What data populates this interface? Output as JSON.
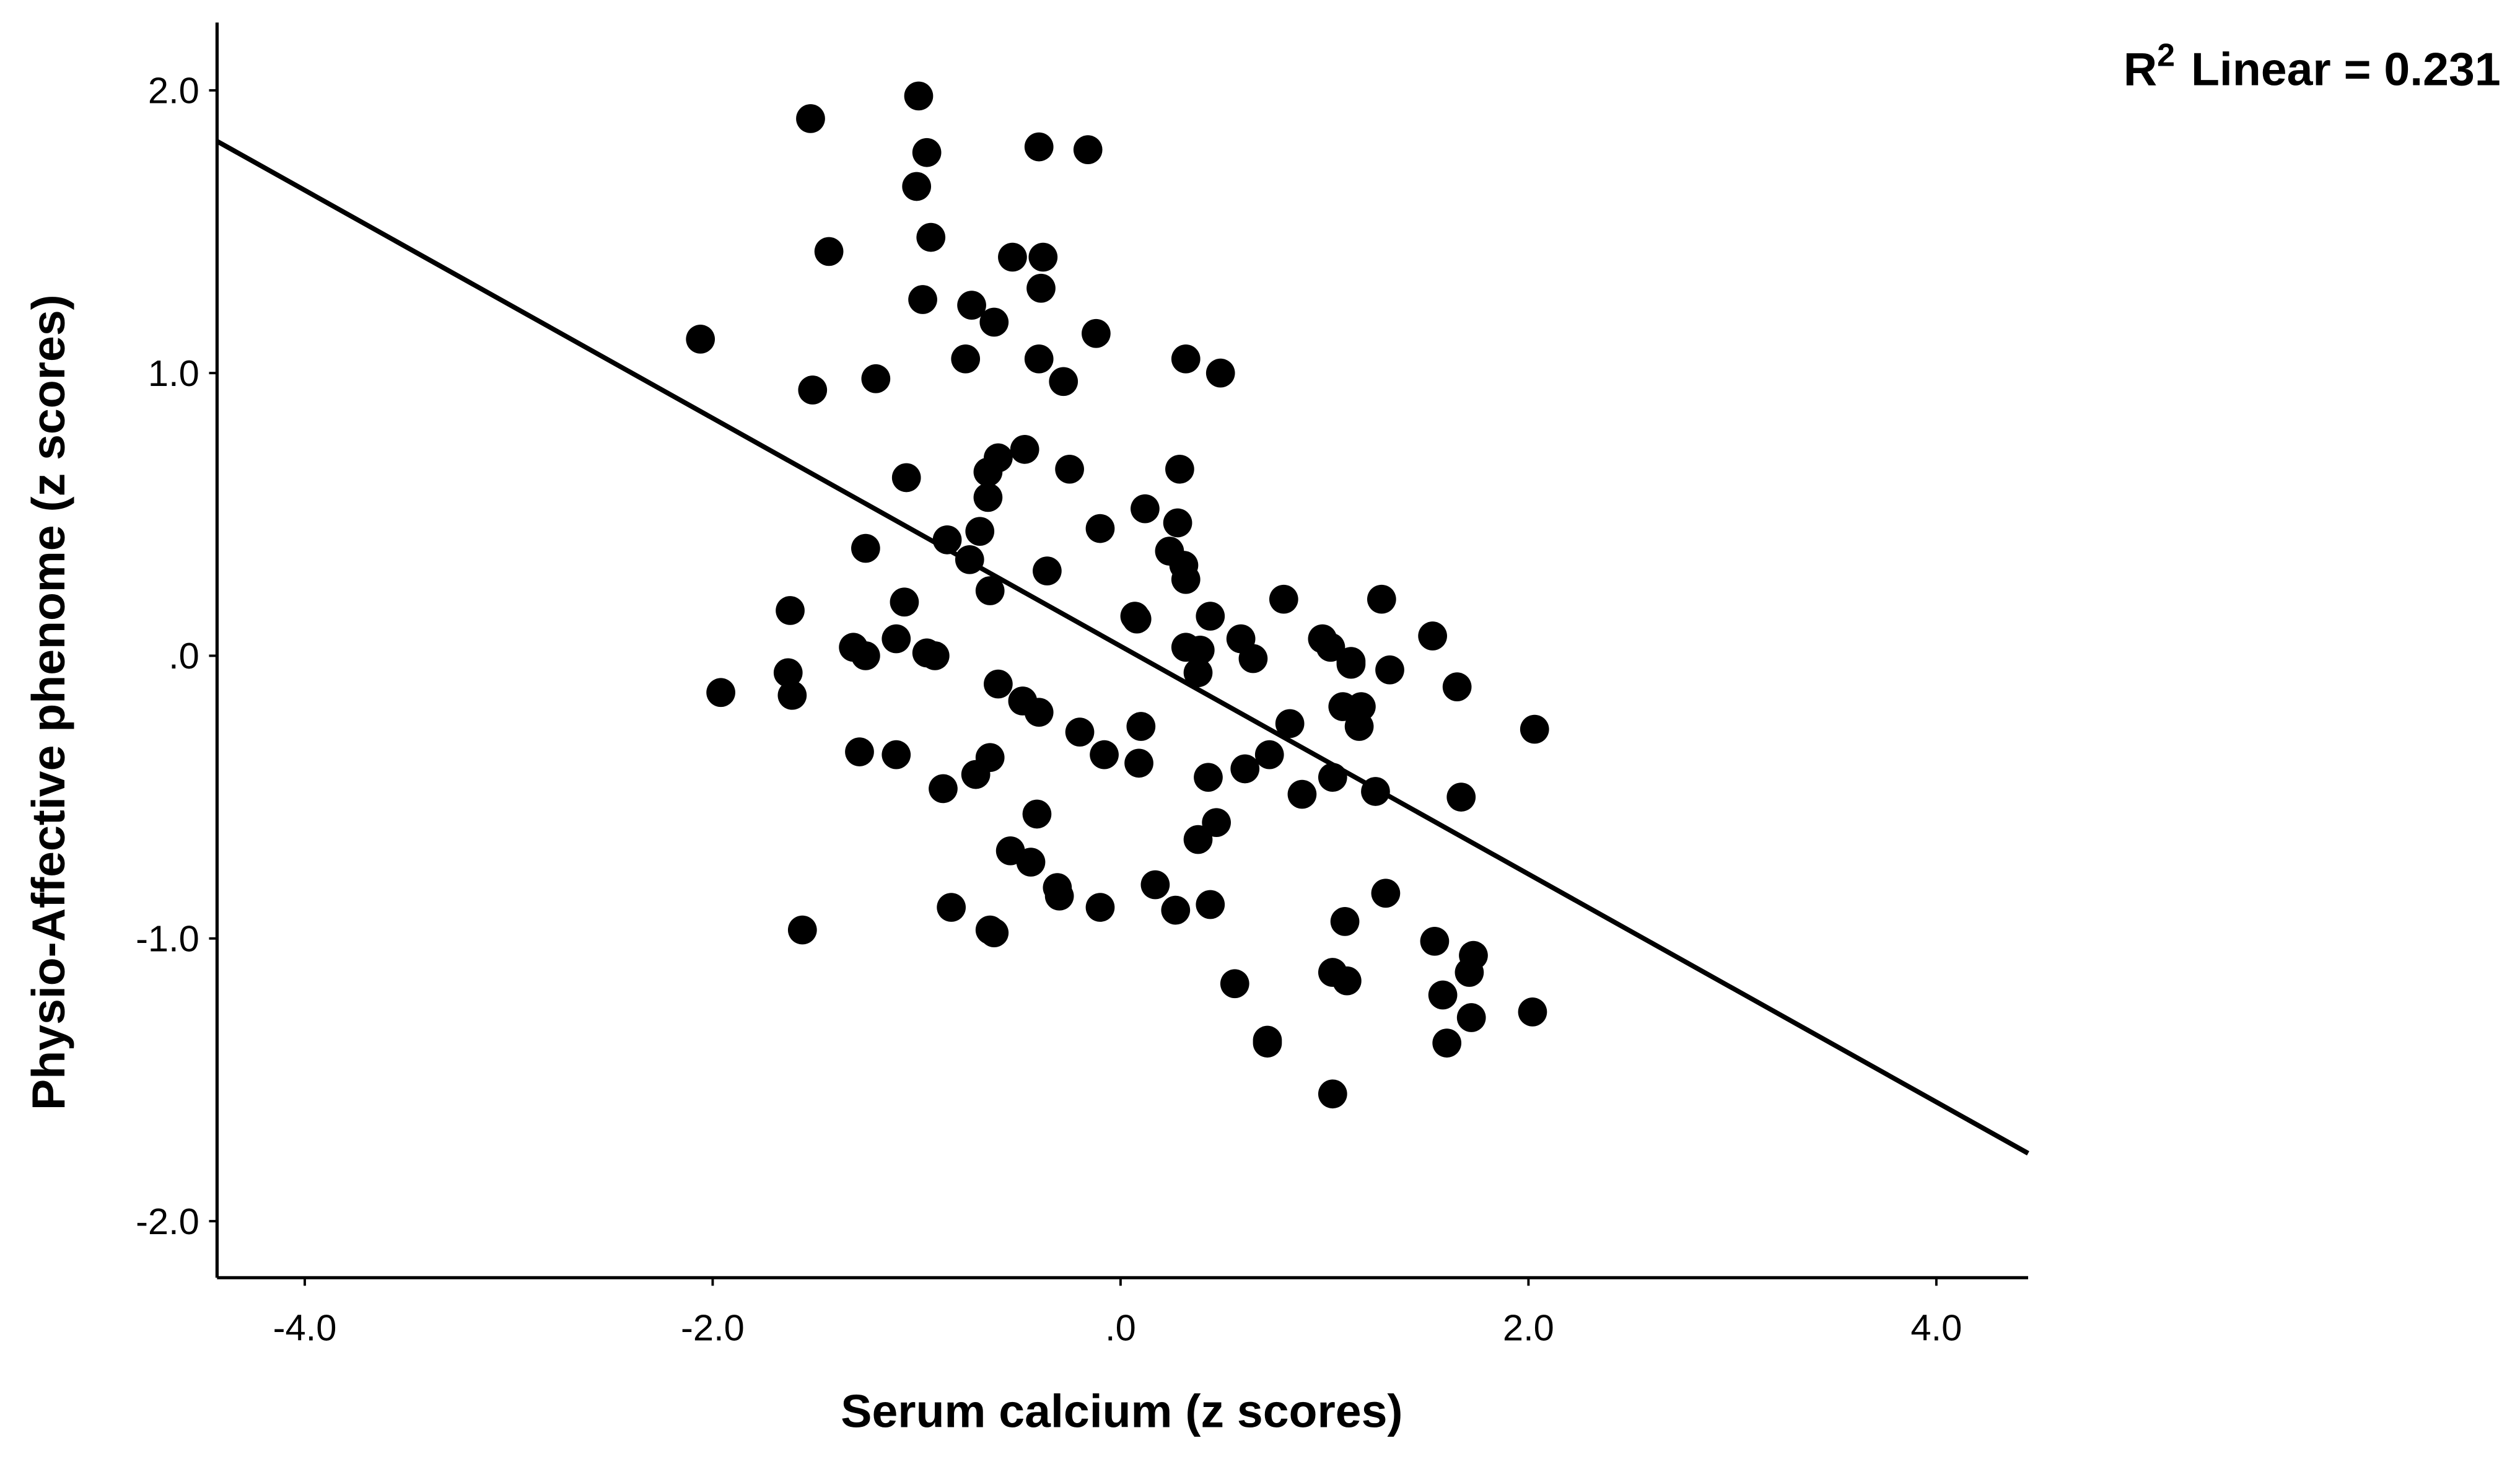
{
  "chart_data": {
    "type": "scatter",
    "x_label": "Serum calcium (z scores)",
    "y_label": "Physio-Affective phenome (z scores)",
    "annotation": {
      "base": "R",
      "exponent": "2",
      "text": "Linear = 0.231"
    },
    "color": "#000000",
    "x": [
      -1.52,
      -0.99,
      -0.95,
      -1.0,
      -0.4,
      -0.16,
      -1.43,
      -0.93,
      -0.53,
      -0.38,
      -0.97,
      -0.73,
      -0.62,
      -0.39,
      -0.12,
      -2.06,
      -1.51,
      -1.2,
      -0.76,
      -0.4,
      -0.28,
      0.32,
      0.49,
      -1.05,
      -0.6,
      -0.47,
      -0.65,
      -0.65,
      -0.25,
      0.29,
      -0.69,
      -0.85,
      0.12,
      -0.1,
      0.28,
      -1.25,
      -0.74,
      0.24,
      0.31,
      -0.36,
      0.32,
      -0.64,
      -1.06,
      -1.62,
      0.07,
      0.08,
      0.44,
      0.8,
      1.28,
      1.53,
      -1.1,
      -1.31,
      -1.25,
      -0.95,
      -0.91,
      0.32,
      0.39,
      0.59,
      0.65,
      0.99,
      1.03,
      1.13,
      1.13,
      1.32,
      -1.63,
      -1.61,
      -1.96,
      -0.6,
      -0.48,
      -0.4,
      0.38,
      1.65,
      1.09,
      1.18,
      1.17,
      2.03,
      0.1,
      -0.2,
      -0.08,
      -1.28,
      -1.1,
      -0.64,
      0.09,
      0.73,
      0.83,
      0.61,
      -0.71,
      0.43,
      -0.87,
      1.04,
      1.25,
      0.89,
      1.67,
      -0.41,
      0.47,
      0.38,
      -0.54,
      -0.44,
      -0.31,
      -0.3,
      0.17,
      -0.1,
      0.27,
      0.44,
      -0.83,
      -0.64,
      -0.62,
      -1.56,
      1.3,
      1.1,
      1.54,
      1.73,
      1.71,
      1.04,
      1.11,
      0.56,
      1.58,
      1.72,
      2.02,
      0.72,
      0.72,
      1.6,
      1.04
    ],
    "y": [
      1.9,
      1.98,
      1.78,
      1.66,
      1.8,
      1.79,
      1.43,
      1.48,
      1.41,
      1.41,
      1.26,
      1.24,
      1.18,
      1.3,
      1.14,
      1.12,
      0.94,
      0.98,
      1.05,
      1.05,
      0.97,
      1.05,
      1.0,
      0.63,
      0.7,
      0.73,
      0.65,
      0.56,
      0.66,
      0.66,
      0.44,
      0.41,
      0.52,
      0.45,
      0.47,
      0.38,
      0.34,
      0.37,
      0.32,
      0.3,
      0.27,
      0.23,
      0.19,
      0.16,
      0.14,
      0.13,
      0.14,
      0.2,
      0.2,
      0.07,
      0.06,
      0.03,
      0.0,
      0.01,
      0.0,
      0.03,
      0.02,
      0.06,
      -0.01,
      0.06,
      0.03,
      -0.02,
      -0.03,
      -0.05,
      -0.06,
      -0.14,
      -0.13,
      -0.1,
      -0.16,
      -0.2,
      -0.06,
      -0.11,
      -0.18,
      -0.18,
      -0.25,
      -0.26,
      -0.25,
      -0.27,
      -0.35,
      -0.34,
      -0.35,
      -0.36,
      -0.38,
      -0.35,
      -0.24,
      -0.4,
      -0.42,
      -0.43,
      -0.47,
      -0.43,
      -0.48,
      -0.49,
      -0.5,
      -0.56,
      -0.59,
      -0.65,
      -0.69,
      -0.73,
      -0.82,
      -0.85,
      -0.81,
      -0.89,
      -0.9,
      -0.88,
      -0.89,
      -0.97,
      -0.98,
      -0.97,
      -0.84,
      -0.94,
      -1.01,
      -1.06,
      -1.12,
      -1.12,
      -1.15,
      -1.16,
      -1.2,
      -1.28,
      -1.26,
      -1.36,
      -1.37,
      -1.37,
      -1.55
    ],
    "fit_line": {
      "x": [
        -4.43,
        4.45
      ],
      "y": [
        1.82,
        -1.76
      ]
    },
    "xlim": [
      -4.43,
      4.45
    ],
    "ylim": [
      -2.2,
      2.24
    ],
    "xticks": [
      {
        "value": -4,
        "label": "-4.0"
      },
      {
        "value": -2,
        "label": "-2.0"
      },
      {
        "value": 0,
        "label": ".0"
      },
      {
        "value": 2,
        "label": "2.0"
      },
      {
        "value": 4,
        "label": "4.0"
      }
    ],
    "yticks": [
      {
        "value": -2,
        "label": "-2.0"
      },
      {
        "value": -1,
        "label": "-1.0"
      },
      {
        "value": 0,
        "label": ".0"
      },
      {
        "value": 1,
        "label": "1.0"
      },
      {
        "value": 2,
        "label": "2.0"
      }
    ]
  }
}
